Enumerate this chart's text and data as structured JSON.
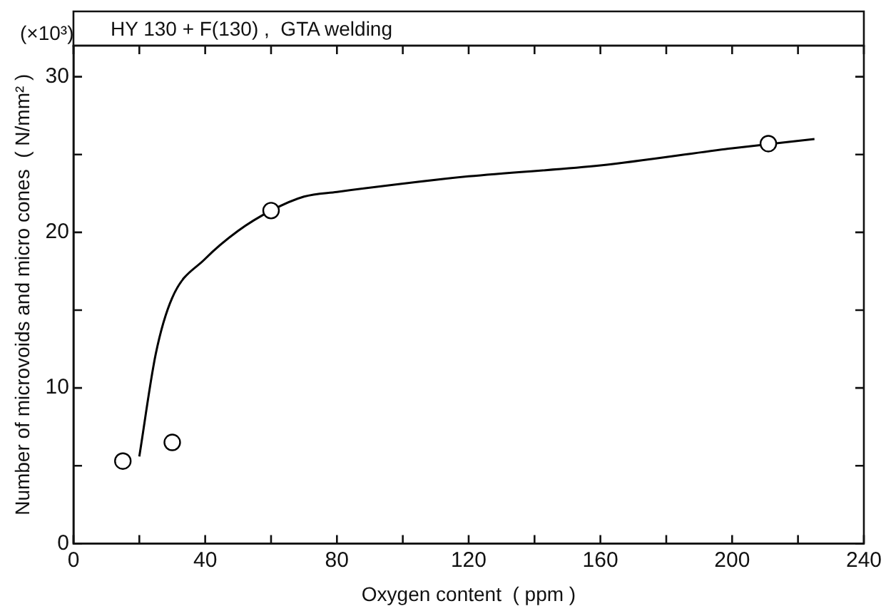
{
  "chart_data": {
    "type": "scatter",
    "title": "HY 130 + F(130) ,  GTA welding",
    "xlabel": "Oxygen content  ( ppm )",
    "ylabel": "Number of microvoids and micro cones  ( N/mm² )",
    "annotations": [
      "(×10³)"
    ],
    "xlim": [
      0,
      240
    ],
    "ylim": [
      0,
      32
    ],
    "xticks": [
      0,
      {
        "value": 20,
        "label": null
      },
      40,
      {
        "value": 60,
        "label": null
      },
      80,
      {
        "value": 100,
        "label": null
      },
      120,
      {
        "value": 140,
        "label": null
      },
      160,
      {
        "value": 180,
        "label": null
      },
      200,
      {
        "value": 220,
        "label": null
      },
      240
    ],
    "yticks": [
      0,
      {
        "value": 5,
        "label": null
      },
      10,
      {
        "value": 15,
        "label": null
      },
      20,
      {
        "value": 25,
        "label": null
      },
      30
    ],
    "grid": false,
    "legend": false,
    "series": [
      {
        "type": "scatter",
        "marker": "circle",
        "color": "#000000",
        "x": [
          15,
          30,
          60,
          211
        ],
        "values": [
          5.3,
          6.5,
          21.4,
          25.7
        ]
      },
      {
        "type": "line",
        "marker": "none",
        "color": "#000000",
        "x": [
          20,
          25,
          30,
          40,
          50,
          60,
          70,
          80,
          120,
          160,
          200,
          225
        ],
        "values": [
          5.6,
          12.2,
          15.8,
          18.3,
          20.1,
          21.4,
          22.3,
          22.6,
          23.6,
          24.3,
          25.4,
          26.0
        ]
      }
    ]
  }
}
